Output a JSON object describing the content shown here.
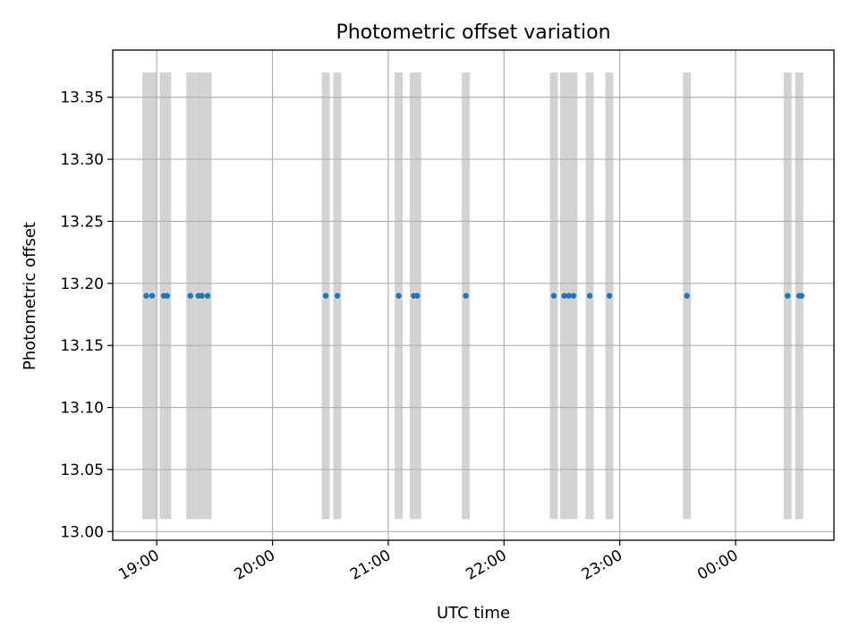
{
  "chart_data": {
    "type": "scatter",
    "title": "Photometric offset variation",
    "xlabel": "UTC time",
    "ylabel": "Photometric offset",
    "x_axis": {
      "kind": "time",
      "unit": "hours",
      "range_hours": [
        18.62,
        24.85
      ],
      "ticks": [
        {
          "value": 19,
          "label": "19:00"
        },
        {
          "value": 20,
          "label": "20:00"
        },
        {
          "value": 21,
          "label": "21:00"
        },
        {
          "value": 22,
          "label": "22:00"
        },
        {
          "value": 23,
          "label": "23:00"
        },
        {
          "value": 24,
          "label": "00:00"
        }
      ]
    },
    "y_axis": {
      "range": [
        12.993,
        13.388
      ],
      "ticks": [
        "13.00",
        "13.05",
        "13.10",
        "13.15",
        "13.20",
        "13.25",
        "13.30",
        "13.35"
      ]
    },
    "grid": true,
    "series": [
      {
        "color": "#1f77b4",
        "x_hours": [
          18.91,
          18.96,
          19.06,
          19.09,
          19.29,
          19.36,
          19.39,
          19.44,
          20.46,
          20.56,
          21.09,
          21.22,
          21.25,
          21.67,
          22.43,
          22.52,
          22.56,
          22.6,
          22.74,
          22.91,
          23.58,
          24.45,
          24.55,
          24.57
        ],
        "y": [
          13.19,
          13.19,
          13.19,
          13.19,
          13.19,
          13.19,
          13.19,
          13.19,
          13.19,
          13.19,
          13.19,
          13.19,
          13.19,
          13.19,
          13.19,
          13.19,
          13.19,
          13.19,
          13.19,
          13.19,
          13.19,
          13.19,
          13.19,
          13.19
        ]
      }
    ],
    "bands": {
      "color": "#d3d3d3",
      "y_range": [
        13.01,
        13.37
      ],
      "x_hours": [
        18.91,
        18.96,
        19.06,
        19.09,
        19.29,
        19.36,
        19.39,
        19.44,
        20.46,
        20.56,
        21.09,
        21.22,
        21.25,
        21.67,
        22.43,
        22.52,
        22.56,
        22.6,
        22.74,
        22.91,
        23.58,
        24.45,
        24.55
      ]
    }
  }
}
